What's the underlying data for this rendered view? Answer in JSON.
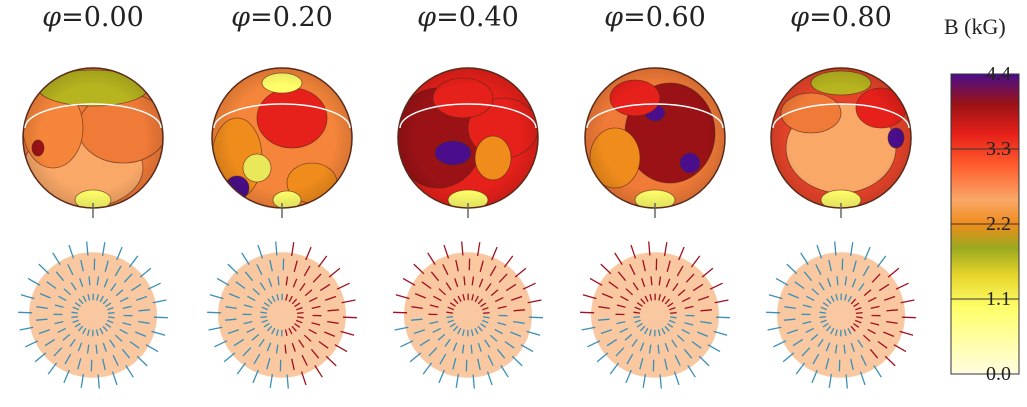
{
  "phases": [
    {
      "symbol": "φ",
      "value": "=0.00"
    },
    {
      "symbol": "φ",
      "value": "=0.20"
    },
    {
      "symbol": "φ",
      "value": "=0.40"
    },
    {
      "symbol": "φ",
      "value": "=0.60"
    },
    {
      "symbol": "φ",
      "value": "=0.80"
    }
  ],
  "colorbar": {
    "title": "B (kG)",
    "ticks": [
      "4.4",
      "3.3",
      "2.2",
      "1.1",
      "0.0"
    ],
    "range": [
      0.0,
      4.4
    ],
    "colors": [
      "#fffde0",
      "#ffff6a",
      "#f0d12a",
      "#9aa920",
      "#f08c1c",
      "#f9a868",
      "#ff5a2c",
      "#e6201a",
      "#9a1216",
      "#4a0e8c"
    ]
  },
  "vector_colors": {
    "outward": "#3a8fb8",
    "inward": "#a01020",
    "surface": "#f9c8a0"
  }
}
